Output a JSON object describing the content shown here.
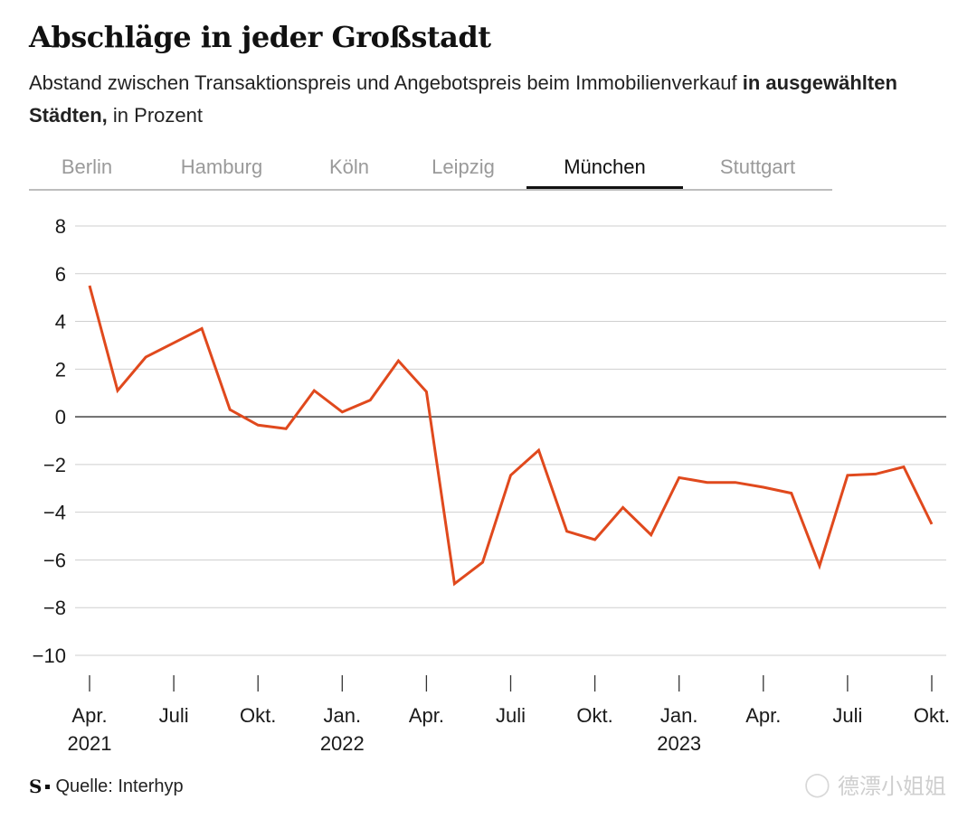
{
  "header": {
    "title": "Abschläge in jeder Großstadt",
    "subtitle_part1": "Abstand zwischen Transaktionspreis und Angebotspreis beim Immobilienverkauf ",
    "subtitle_bold": "in ausgewählten Städten,",
    "subtitle_part2": " in Prozent"
  },
  "tabs": [
    {
      "label": "Berlin",
      "active": false
    },
    {
      "label": "Hamburg",
      "active": false
    },
    {
      "label": "Köln",
      "active": false
    },
    {
      "label": "Leipzig",
      "active": false
    },
    {
      "label": "München",
      "active": true
    },
    {
      "label": "Stuttgart",
      "active": false
    }
  ],
  "footer": {
    "logo": "S",
    "source": "Quelle: Interhyp",
    "watermark": "德漂小姐姐"
  },
  "colors": {
    "line": "#e0491d",
    "grid": "#cfcfcf",
    "zero": "#333333",
    "text": "#1a1a1a"
  },
  "chart_data": {
    "type": "line",
    "title": "",
    "xlabel": "",
    "ylabel": "",
    "ylim": [
      -10,
      8
    ],
    "yticks": [
      8,
      6,
      4,
      2,
      0,
      -2,
      -4,
      -6,
      -8,
      -10
    ],
    "ytick_labels": [
      "8",
      "6",
      "4",
      "2",
      "0",
      "−2",
      "−4",
      "−6",
      "−8",
      "−10"
    ],
    "grid": true,
    "x": [
      "2021-04",
      "2021-05",
      "2021-06",
      "2021-07",
      "2021-08",
      "2021-09",
      "2021-10",
      "2021-11",
      "2021-12",
      "2022-01",
      "2022-02",
      "2022-03",
      "2022-04",
      "2022-05",
      "2022-06",
      "2022-07",
      "2022-08",
      "2022-09",
      "2022-10",
      "2022-11",
      "2022-12",
      "2023-01",
      "2023-02",
      "2023-03",
      "2023-04",
      "2023-05",
      "2023-06",
      "2023-07",
      "2023-08",
      "2023-09",
      "2023-10"
    ],
    "series": [
      {
        "values": [
          5.5,
          1.1,
          2.5,
          3.1,
          3.7,
          0.3,
          -0.35,
          -0.5,
          1.1,
          0.2,
          0.7,
          2.35,
          1.05,
          -7.0,
          -6.1,
          -2.45,
          -1.4,
          -4.8,
          -5.15,
          -3.8,
          -4.95,
          -2.55,
          -2.75,
          -2.75,
          -2.95,
          -3.2,
          -6.25,
          -2.45,
          -2.4,
          -2.1,
          -4.5
        ]
      }
    ],
    "x_ticks": [
      {
        "label": "Apr.",
        "year": "2021"
      },
      {
        "label": "Juli",
        "year": ""
      },
      {
        "label": "Okt.",
        "year": ""
      },
      {
        "label": "Jan.",
        "year": "2022"
      },
      {
        "label": "Apr.",
        "year": ""
      },
      {
        "label": "Juli",
        "year": ""
      },
      {
        "label": "Okt.",
        "year": ""
      },
      {
        "label": "Jan.",
        "year": "2023"
      },
      {
        "label": "Apr.",
        "year": ""
      },
      {
        "label": "Juli",
        "year": ""
      },
      {
        "label": "Okt.",
        "year": ""
      }
    ]
  }
}
